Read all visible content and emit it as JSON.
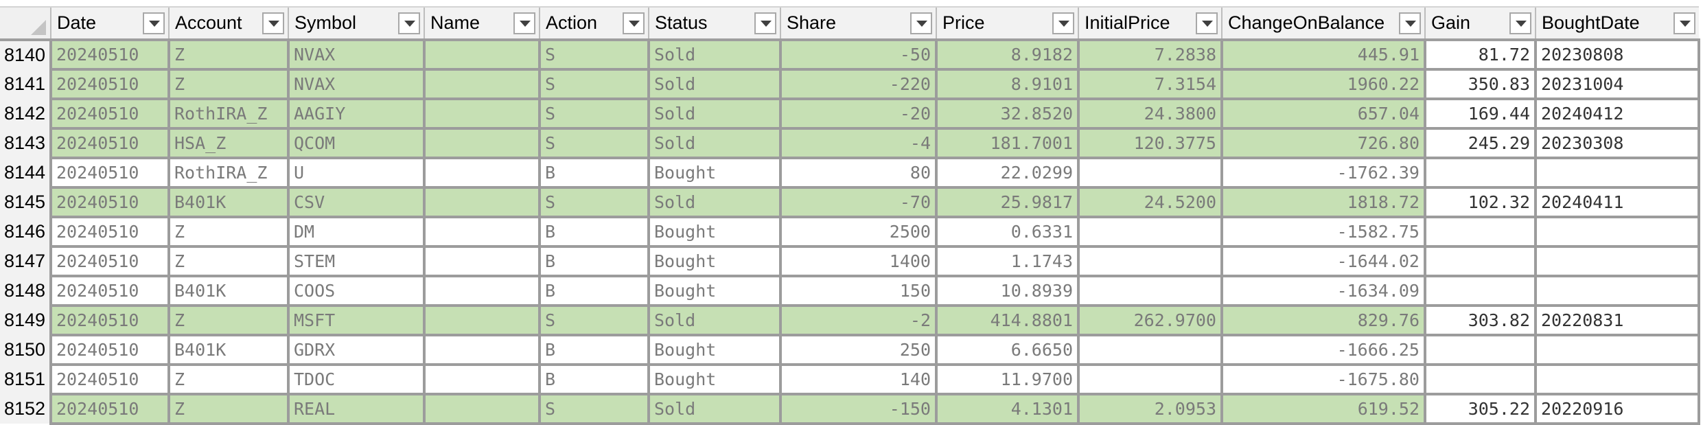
{
  "columns": [
    {
      "key": "date",
      "label": "Date"
    },
    {
      "key": "account",
      "label": "Account"
    },
    {
      "key": "symbol",
      "label": "Symbol"
    },
    {
      "key": "name",
      "label": "Name"
    },
    {
      "key": "action",
      "label": "Action"
    },
    {
      "key": "status",
      "label": "Status"
    },
    {
      "key": "share",
      "label": "Share"
    },
    {
      "key": "price",
      "label": "Price"
    },
    {
      "key": "initial_price",
      "label": "InitialPrice"
    },
    {
      "key": "change_on_balance",
      "label": "ChangeOnBalance"
    },
    {
      "key": "gain",
      "label": "Gain"
    },
    {
      "key": "bought_date",
      "label": "BoughtDate"
    }
  ],
  "colors": {
    "sold_row_fill": "#c6e0b4",
    "header_bg": "#f2f2f2",
    "gridline": "#9c9c9c"
  },
  "rows": [
    {
      "row_number": "8140",
      "date": "20240510",
      "account": "Z",
      "symbol": "NVAX",
      "name": "",
      "action": "S",
      "status": "Sold",
      "share": "-50",
      "price": "8.9182",
      "initial_price": "7.2838",
      "change_on_balance": "445.91",
      "gain": "81.72",
      "bought_date": "20230808",
      "highlight": true
    },
    {
      "row_number": "8141",
      "date": "20240510",
      "account": "Z",
      "symbol": "NVAX",
      "name": "",
      "action": "S",
      "status": "Sold",
      "share": "-220",
      "price": "8.9101",
      "initial_price": "7.3154",
      "change_on_balance": "1960.22",
      "gain": "350.83",
      "bought_date": "20231004",
      "highlight": true
    },
    {
      "row_number": "8142",
      "date": "20240510",
      "account": "RothIRA_Z",
      "symbol": "AAGIY",
      "name": "",
      "action": "S",
      "status": "Sold",
      "share": "-20",
      "price": "32.8520",
      "initial_price": "24.3800",
      "change_on_balance": "657.04",
      "gain": "169.44",
      "bought_date": "20240412",
      "highlight": true
    },
    {
      "row_number": "8143",
      "date": "20240510",
      "account": "HSA_Z",
      "symbol": "QCOM",
      "name": "",
      "action": "S",
      "status": "Sold",
      "share": "-4",
      "price": "181.7001",
      "initial_price": "120.3775",
      "change_on_balance": "726.80",
      "gain": "245.29",
      "bought_date": "20230308",
      "highlight": true
    },
    {
      "row_number": "8144",
      "date": "20240510",
      "account": "RothIRA_Z",
      "symbol": "U",
      "name": "",
      "action": "B",
      "status": "Bought",
      "share": "80",
      "price": "22.0299",
      "initial_price": "",
      "change_on_balance": "-1762.39",
      "gain": "",
      "bought_date": "",
      "highlight": false
    },
    {
      "row_number": "8145",
      "date": "20240510",
      "account": "B401K",
      "symbol": "CSV",
      "name": "",
      "action": "S",
      "status": "Sold",
      "share": "-70",
      "price": "25.9817",
      "initial_price": "24.5200",
      "change_on_balance": "1818.72",
      "gain": "102.32",
      "bought_date": "20240411",
      "highlight": true
    },
    {
      "row_number": "8146",
      "date": "20240510",
      "account": "Z",
      "symbol": "DM",
      "name": "",
      "action": "B",
      "status": "Bought",
      "share": "2500",
      "price": "0.6331",
      "initial_price": "",
      "change_on_balance": "-1582.75",
      "gain": "",
      "bought_date": "",
      "highlight": false
    },
    {
      "row_number": "8147",
      "date": "20240510",
      "account": "Z",
      "symbol": "STEM",
      "name": "",
      "action": "B",
      "status": "Bought",
      "share": "1400",
      "price": "1.1743",
      "initial_price": "",
      "change_on_balance": "-1644.02",
      "gain": "",
      "bought_date": "",
      "highlight": false
    },
    {
      "row_number": "8148",
      "date": "20240510",
      "account": "B401K",
      "symbol": "COOS",
      "name": "",
      "action": "B",
      "status": "Bought",
      "share": "150",
      "price": "10.8939",
      "initial_price": "",
      "change_on_balance": "-1634.09",
      "gain": "",
      "bought_date": "",
      "highlight": false
    },
    {
      "row_number": "8149",
      "date": "20240510",
      "account": "Z",
      "symbol": "MSFT",
      "name": "",
      "action": "S",
      "status": "Sold",
      "share": "-2",
      "price": "414.8801",
      "initial_price": "262.9700",
      "change_on_balance": "829.76",
      "gain": "303.82",
      "bought_date": "20220831",
      "highlight": true
    },
    {
      "row_number": "8150",
      "date": "20240510",
      "account": "B401K",
      "symbol": "GDRX",
      "name": "",
      "action": "B",
      "status": "Bought",
      "share": "250",
      "price": "6.6650",
      "initial_price": "",
      "change_on_balance": "-1666.25",
      "gain": "",
      "bought_date": "",
      "highlight": false
    },
    {
      "row_number": "8151",
      "date": "20240510",
      "account": "Z",
      "symbol": "TDOC",
      "name": "",
      "action": "B",
      "status": "Bought",
      "share": "140",
      "price": "11.9700",
      "initial_price": "",
      "change_on_balance": "-1675.80",
      "gain": "",
      "bought_date": "",
      "highlight": false
    },
    {
      "row_number": "8152",
      "date": "20240510",
      "account": "Z",
      "symbol": "REAL",
      "name": "",
      "action": "S",
      "status": "Sold",
      "share": "-150",
      "price": "4.1301",
      "initial_price": "2.0953",
      "change_on_balance": "619.52",
      "gain": "305.22",
      "bought_date": "20220916",
      "highlight": true
    }
  ]
}
